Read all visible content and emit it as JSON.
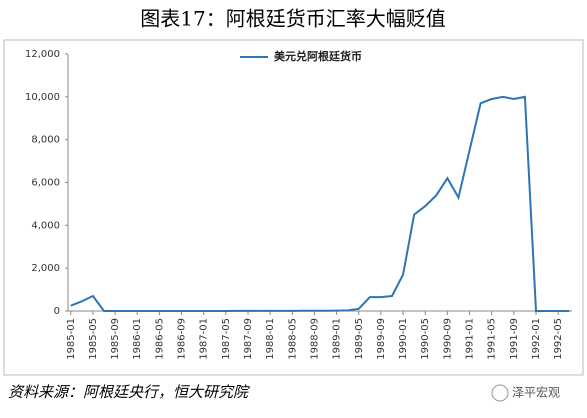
{
  "header": {
    "title": "图表17：阿根廷货币汇率大幅贬值"
  },
  "chart_data": {
    "type": "line",
    "categories": [
      "1985-01",
      null,
      "1985-05",
      null,
      "1985-09",
      null,
      "1986-01",
      null,
      "1986-05",
      null,
      "1986-09",
      null,
      "1987-01",
      null,
      "1987-05",
      null,
      "1987-09",
      null,
      "1988-01",
      null,
      "1988-05",
      null,
      "1988-09",
      null,
      "1989-01",
      null,
      "1989-05",
      null,
      "1989-09",
      null,
      "1990-01",
      null,
      "1990-05",
      null,
      "1990-09",
      null,
      "1991-01",
      null,
      "1991-05",
      null,
      "1991-09",
      null,
      "1992-01",
      null,
      "1992-05",
      null
    ],
    "series": [
      {
        "name": "美元兑阿根廷货币",
        "color": "#2e75b6",
        "values": [
          250,
          450,
          700,
          1,
          1,
          1,
          1,
          1,
          1,
          1,
          1,
          1,
          2,
          2,
          2,
          3,
          3,
          4,
          4,
          6,
          8,
          12,
          13,
          14,
          17,
          30,
          100,
          650,
          650,
          700,
          1700,
          4500,
          4900,
          5400,
          6200,
          5300,
          7500,
          9700,
          9900,
          10000,
          9900,
          10000,
          1,
          1,
          1,
          1
        ]
      }
    ],
    "ylim": [
      0,
      12000
    ],
    "yticks": [
      0,
      {
        "value": 2000,
        "label": "2,000"
      },
      {
        "value": 4000,
        "label": "4,000"
      },
      {
        "value": 6000,
        "label": "6,000"
      },
      {
        "value": 8000,
        "label": "8,000"
      },
      {
        "value": 10000,
        "label": "10,000"
      },
      {
        "value": 12000,
        "label": "12,000"
      }
    ]
  },
  "footer": {
    "source": "资料来源：阿根廷央行，恒大研究院",
    "watermark": "泽平宏观"
  }
}
